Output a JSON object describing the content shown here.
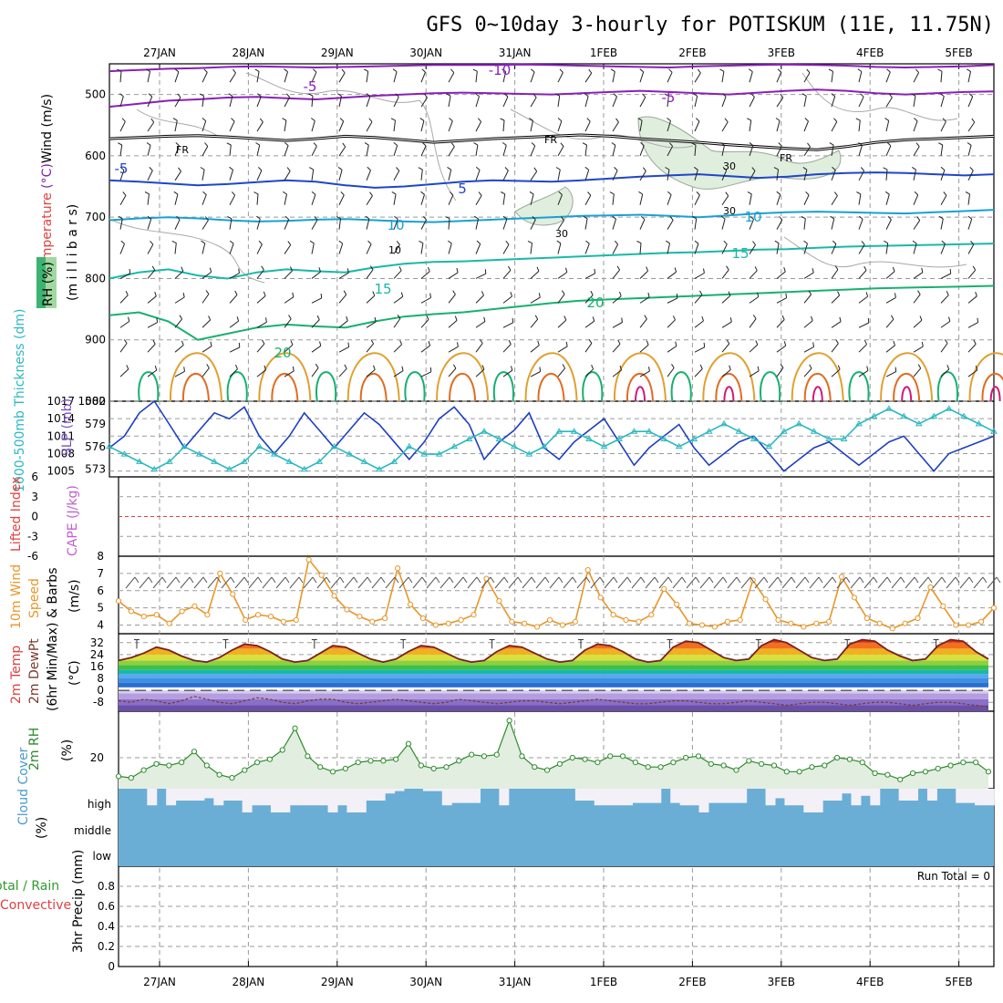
{
  "chart_data": {
    "type": "multi-panel meteogram",
    "title": "GFS 0~10day 3-hourly for POTISKUM (11E, 11.75N)",
    "dates": [
      "27JAN",
      "28JAN",
      "29JAN",
      "30JAN",
      "31JAN",
      "1FEB",
      "2FEB",
      "3FEB",
      "4FEB",
      "5FEB"
    ],
    "panels": {
      "upper_air": {
        "ylabel_parts": {
          "wind": "Wind (m/s)",
          "temperature": "Temperature (°C)",
          "rh": "RH (%)",
          "units": "(m i l l i b a r s)"
        },
        "y_ticks": [
          "500",
          "600",
          "700",
          "800",
          "900",
          "1000"
        ],
        "ylim": [
          450,
          1000
        ],
        "isotherm_labels": [
          "-10",
          "-5",
          "-5",
          "FR",
          "FR",
          "FR",
          "-5",
          "5",
          "10",
          "10",
          "15",
          "15",
          "20",
          "20"
        ],
        "rh_contour_labels": [
          "30",
          "30",
          "30",
          "10"
        ],
        "isotherms": [
          {
            "name": "-10",
            "level": [
              462,
              460,
              458,
              457,
              455,
              454,
              455,
              456,
              455,
              454,
              453,
              452,
              452,
              452,
              451,
              452,
              453,
              454,
              455,
              456,
              454,
              453,
              452,
              451,
              452,
              453,
              455,
              456,
              455,
              454,
              452
            ]
          },
          {
            "name": "-5",
            "level": [
              520,
              515,
              510,
              508,
              505,
              504,
              506,
              508,
              505,
              502,
              500,
              498,
              497,
              498,
              499,
              500,
              498,
              496,
              494,
              496,
              498,
              500,
              497,
              494,
              492,
              494,
              498,
              500,
              498,
              496,
              495
            ]
          },
          {
            "name": "FR",
            "level": [
              572,
              570,
              568,
              567,
              569,
              572,
              575,
              572,
              568,
              570,
              574,
              578,
              575,
              572,
              570,
              568,
              566,
              568,
              572,
              575,
              578,
              582,
              585,
              588,
              590,
              585,
              578,
              574,
              572,
              570,
              568
            ]
          },
          {
            "name": "-5b",
            "level": [
              640,
              642,
              645,
              648,
              646,
              643,
              640,
              642,
              648,
              652,
              650,
              646,
              642,
              640,
              641,
              642,
              640,
              637,
              634,
              632,
              630,
              633,
              636,
              634,
              630,
              628,
              627,
              628,
              630,
              632,
              630
            ]
          },
          {
            "name": "10",
            "level": [
              705,
              702,
              700,
              702,
              705,
              707,
              706,
              704,
              703,
              705,
              707,
              708,
              706,
              704,
              702,
              700,
              698,
              697,
              696,
              698,
              700,
              697,
              694,
              692,
              691,
              692,
              693,
              694,
              692,
              690,
              688
            ]
          },
          {
            "name": "15",
            "level": [
              800,
              790,
              785,
              795,
              800,
              790,
              785,
              788,
              790,
              782,
              776,
              773,
              772,
              770,
              768,
              766,
              764,
              762,
              760,
              758,
              757,
              755,
              753,
              752,
              750,
              748,
              747,
              746,
              745,
              744,
              743
            ]
          },
          {
            "name": "20",
            "level": [
              860,
              855,
              870,
              900,
              890,
              880,
              875,
              878,
              880,
              870,
              862,
              858,
              855,
              850,
              845,
              840,
              836,
              834,
              832,
              830,
              828,
              826,
              824,
              822,
              820,
              818,
              816,
              815,
              814,
              813,
              812
            ]
          }
        ]
      },
      "thickness_slp": {
        "ylabel_parts": {
          "thickness": "1000-500mb Thickness (dm)",
          "slp": "SLP (mb)"
        },
        "left_ticks": [
          "573",
          "576",
          "579",
          "582"
        ],
        "right_ticks": [
          "1005",
          "1008",
          "1011",
          "1014",
          "1017"
        ],
        "slp_series": [
          1009,
          1011,
          1015,
          1017,
          1013,
          1009,
          1012,
          1015,
          1014,
          1016,
          1011,
          1008,
          1011,
          1015,
          1012,
          1009,
          1012,
          1015,
          1013,
          1010,
          1007,
          1010,
          1014,
          1016,
          1013,
          1007,
          1010,
          1012,
          1015,
          1009,
          1007,
          1010,
          1012,
          1014,
          1010,
          1006,
          1009,
          1011,
          1013,
          1009,
          1006,
          1008,
          1010,
          1011,
          1008,
          1005,
          1007,
          1009,
          1010,
          1008,
          1006,
          1008,
          1010,
          1011,
          1008,
          1005,
          1008,
          1009,
          1010,
          1011
        ],
        "thickness_series": [
          576,
          575,
          574,
          573,
          574,
          576,
          575,
          574,
          573,
          574,
          576,
          575,
          574,
          573,
          574,
          576,
          575,
          574,
          573,
          574,
          576,
          575,
          575,
          576,
          577,
          578,
          577,
          576,
          575,
          576,
          578,
          578,
          577,
          576,
          577,
          578,
          578,
          577,
          576,
          577,
          578,
          579,
          578,
          577,
          576,
          578,
          579,
          578,
          577,
          577,
          579,
          580,
          581,
          580,
          579,
          580,
          581,
          580,
          579,
          578
        ]
      },
      "cape_li": {
        "ylabel_parts": {
          "li": "Lifted Index",
          "cape": "CAPE (J/kg)"
        },
        "y_ticks": [
          "6",
          "3",
          "0",
          "-3",
          "-6"
        ],
        "zero_line": 0
      },
      "wind10m": {
        "ylabel_parts": {
          "a": "10m Wind",
          "b": "Speed",
          "c": "& Barbs",
          "units": "(m/s)"
        },
        "y_ticks": [
          "4",
          "5",
          "6",
          "7",
          "8"
        ],
        "ylim": [
          3.5,
          8
        ],
        "values": [
          5.4,
          4.8,
          4.5,
          4.6,
          4.1,
          4.8,
          5.1,
          4.6,
          7.0,
          5.8,
          4.3,
          4.6,
          4.5,
          4.2,
          4.3,
          7.8,
          6.9,
          5.7,
          4.9,
          4.5,
          4.2,
          4.4,
          7.3,
          5.2,
          4.4,
          4.0,
          4.1,
          4.3,
          4.6,
          6.7,
          5.4,
          4.2,
          4.1,
          3.9,
          4.3,
          4.0,
          4.2,
          7.2,
          5.6,
          4.6,
          4.3,
          4.2,
          4.6,
          6.1,
          5.2,
          4.1,
          4.0,
          3.9,
          4.2,
          4.3,
          6.6,
          5.5,
          4.3,
          4.1,
          3.9,
          4.1,
          4.2,
          6.8,
          5.6,
          4.4,
          4.1,
          3.8,
          4.1,
          4.4,
          6.2,
          5.1,
          4.0,
          4.0,
          4.2,
          5.0
        ],
        "grid_lines": [
          4,
          5,
          6,
          7
        ]
      },
      "temp2m": {
        "ylabel_parts": {
          "a": "2m Temp",
          "b": "2m DewPt",
          "c": "(6hr Min/Max)",
          "units": "(°C)"
        },
        "y_ticks": [
          "-8",
          "0",
          "8",
          "16",
          "24",
          "32"
        ],
        "ylim": [
          -14,
          38
        ],
        "temp_series": [
          20,
          22,
          25,
          29,
          27,
          23,
          20,
          19,
          22,
          27,
          31,
          30,
          26,
          21,
          19,
          20,
          25,
          30,
          29,
          25,
          21,
          19,
          21,
          26,
          30,
          29,
          25,
          21,
          19,
          20,
          26,
          30,
          29,
          25,
          21,
          19,
          20,
          27,
          31,
          30,
          26,
          21,
          19,
          20,
          29,
          33,
          32,
          27,
          22,
          20,
          21,
          30,
          34,
          32,
          27,
          22,
          20,
          21,
          31,
          34,
          33,
          27,
          23,
          20,
          21,
          30,
          34,
          33,
          26,
          21
        ],
        "dewpoint_series": [
          -7,
          -8,
          -6,
          -7,
          -9,
          -7,
          -4,
          -6,
          -8,
          -9,
          -7,
          -5,
          -6,
          -8,
          -9,
          -7,
          -6,
          -6,
          -8,
          -9,
          -8,
          -7,
          -6,
          -7,
          -8,
          -9,
          -8,
          -6,
          -7,
          -8,
          -9,
          -8,
          -7,
          -7,
          -8,
          -9,
          -8,
          -7,
          -6,
          -7,
          -8,
          -9,
          -9,
          -8,
          -7,
          -7,
          -8,
          -9,
          -9,
          -8,
          -7,
          -8,
          -9,
          -10,
          -9,
          -8,
          -8,
          -9,
          -10,
          -9,
          -8,
          -8,
          -9,
          -10,
          -9,
          -8,
          -8,
          -9,
          -10,
          -11
        ]
      },
      "rh2m": {
        "ylabel_parts": {
          "a": "2m RH",
          "units": "(%)"
        },
        "y_ticks": [
          "20"
        ],
        "ylim": [
          0,
          50
        ],
        "values": [
          8,
          7,
          12,
          16,
          15,
          17,
          24,
          15,
          9,
          7,
          12,
          17,
          19,
          25,
          39,
          21,
          14,
          11,
          13,
          17,
          18,
          18,
          19,
          29,
          15,
          13,
          14,
          18,
          22,
          21,
          22,
          44,
          21,
          14,
          12,
          16,
          20,
          19,
          17,
          21,
          21,
          17,
          14,
          14,
          17,
          20,
          21,
          16,
          15,
          12,
          18,
          16,
          15,
          11,
          11,
          14,
          15,
          20,
          19,
          17,
          10,
          9,
          6,
          10,
          11,
          13,
          15,
          17,
          17,
          11
        ]
      },
      "cloud": {
        "ylabel_parts": {
          "a": "Cloud Cover",
          "units": "(%)"
        },
        "levels": [
          "high",
          "middle",
          "low"
        ],
        "high_cover_top": [
          1,
          1,
          1,
          0.3,
          1,
          0.3,
          0.5,
          0.5,
          0.5,
          0.6,
          0.3,
          0.5,
          0.5,
          0,
          0.3,
          0.3,
          0,
          0,
          0.3,
          0.3,
          0.3,
          0.3,
          0,
          0.3,
          0,
          0,
          0.5,
          0.5,
          0.8,
          0.9,
          1,
          1,
          0.9,
          0.9,
          0.3,
          0.4,
          0.4,
          0.4,
          1,
          1,
          0.3,
          1,
          1,
          1,
          1,
          1,
          1,
          1,
          0.5,
          0.5,
          0.3,
          0.3,
          0.3,
          0.3,
          0.4,
          0.4,
          0.4,
          1,
          0.4,
          0.3,
          0.3,
          0,
          0.4,
          0.4,
          0.4,
          0.4,
          1,
          1,
          0.3,
          0.6,
          0.3,
          0.3,
          0,
          0,
          0.5,
          0.5,
          0.8,
          0.3,
          0.7,
          0.3,
          1,
          1,
          0.5,
          0.5,
          1,
          0.5,
          1,
          1,
          0.4,
          0.4,
          0.3,
          0.3
        ]
      },
      "precip": {
        "ylabel_parts": {
          "a": "Total / Rain",
          "b": "Convective",
          "c": "3hr Precip (mm)"
        },
        "y_ticks": [
          "0",
          "0.2",
          "0.4",
          "0.6",
          "0.8"
        ],
        "ylim": [
          0,
          1
        ],
        "run_total_label": "Run Total = 0"
      }
    },
    "colors": {
      "isotherm_minus10": "#8a1fb8",
      "isotherm_minus5": "#8a1fb8",
      "isotherm_freezing": "#000000",
      "isotherm_5": "#1f46c8",
      "isotherm_10": "#19a0d6",
      "isotherm_15": "#1ab8a8",
      "isotherm_20": "#18b070",
      "rh_fill": "#dfeedd",
      "slp_line": "#1f3fc0",
      "thickness_line": "#2cb8c0",
      "wind10m_line": "#e8962a",
      "temp_line": "#7a2020",
      "rh2m_line": "#2e8b2e",
      "rh2m_fill": "#e2eee0",
      "cloud_fill": "#6aaed6",
      "cloud_clear": "#f4f0f8",
      "zero_line": "#e04040"
    }
  }
}
